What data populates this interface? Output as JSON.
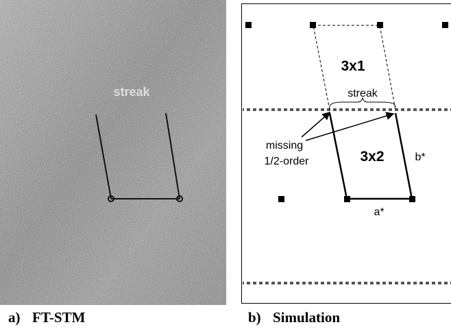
{
  "panels": [
    {
      "label": "a)",
      "caption": "FT-STM",
      "annotations": {
        "streak": "streak"
      }
    },
    {
      "label": "b)",
      "caption": "Simulation",
      "annotations": {
        "cell_3x1": "3x1",
        "streak": "streak",
        "missing": "missing",
        "order": "1/2-order",
        "cell_3x2": "3x2",
        "b_star": "b*",
        "a_star": "a*"
      }
    }
  ]
}
